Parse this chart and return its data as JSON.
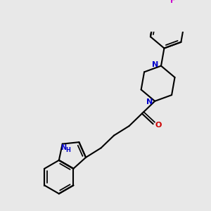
{
  "bg_color": "#e8e8e8",
  "bond_color": "#000000",
  "N_color": "#0000cc",
  "O_color": "#cc0000",
  "F_color": "#cc00cc",
  "NH_color": "#0000cc",
  "line_width": 1.5,
  "figsize": [
    3.0,
    3.0
  ],
  "dpi": 100,
  "xlim": [
    0,
    300
  ],
  "ylim": [
    0,
    300
  ]
}
